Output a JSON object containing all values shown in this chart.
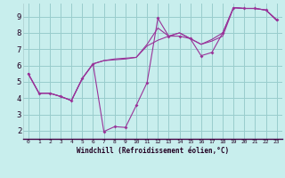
{
  "xlabel": "Windchill (Refroidissement éolien,°C)",
  "ylabel": "",
  "bg_color": "#c8eeed",
  "line_color": "#993399",
  "grid_color": "#99cccc",
  "xlim": [
    -0.5,
    23.5
  ],
  "ylim": [
    1.5,
    9.8
  ],
  "yticks": [
    2,
    3,
    4,
    5,
    6,
    7,
    8,
    9
  ],
  "xticks": [
    0,
    1,
    2,
    3,
    4,
    5,
    6,
    7,
    8,
    9,
    10,
    11,
    12,
    13,
    14,
    15,
    16,
    17,
    18,
    19,
    20,
    21,
    22,
    23
  ],
  "line1_x": [
    0,
    1,
    2,
    3,
    4,
    5,
    6,
    7,
    8,
    9,
    10,
    11,
    12,
    13,
    14,
    15,
    16,
    17,
    18,
    19,
    20,
    21,
    22,
    23
  ],
  "line1_y": [
    5.5,
    4.3,
    4.3,
    4.1,
    3.85,
    5.2,
    6.1,
    6.3,
    6.4,
    6.45,
    6.5,
    7.3,
    8.3,
    7.8,
    8.0,
    7.65,
    7.3,
    7.6,
    8.0,
    9.55,
    9.5,
    9.5,
    9.4,
    8.8
  ],
  "line2_x": [
    0,
    1,
    2,
    3,
    4,
    5,
    6,
    7,
    8,
    9,
    10,
    11,
    12,
    13,
    14,
    15,
    16,
    17,
    18,
    19,
    20,
    21,
    22,
    23
  ],
  "line2_y": [
    5.5,
    4.3,
    4.3,
    4.1,
    3.85,
    5.2,
    6.1,
    1.95,
    2.25,
    2.2,
    3.55,
    4.95,
    8.9,
    7.8,
    7.8,
    7.65,
    6.6,
    6.8,
    8.0,
    9.55,
    9.5,
    9.5,
    9.4,
    8.8
  ],
  "line3_x": [
    0,
    1,
    2,
    3,
    4,
    5,
    6,
    7,
    8,
    9,
    10,
    11,
    12,
    13,
    14,
    15,
    16,
    17,
    18,
    19,
    20,
    21,
    22,
    23
  ],
  "line3_y": [
    5.5,
    4.3,
    4.3,
    4.1,
    3.85,
    5.2,
    6.1,
    6.3,
    6.35,
    6.4,
    6.5,
    7.2,
    7.55,
    7.8,
    8.0,
    7.65,
    7.3,
    7.5,
    7.8,
    9.55,
    9.5,
    9.5,
    9.4,
    8.75
  ],
  "marker_x": [
    0,
    1,
    2,
    3,
    4,
    5,
    6,
    7,
    8,
    9,
    10,
    11,
    12,
    13,
    14,
    15,
    16,
    17,
    18,
    19,
    20,
    21,
    22,
    23
  ],
  "marker_y": [
    5.5,
    4.3,
    4.3,
    4.1,
    3.85,
    5.2,
    6.1,
    1.95,
    2.25,
    2.2,
    3.55,
    4.95,
    8.9,
    7.8,
    7.8,
    7.65,
    6.6,
    6.8,
    8.0,
    9.55,
    9.5,
    9.5,
    9.4,
    8.8
  ]
}
